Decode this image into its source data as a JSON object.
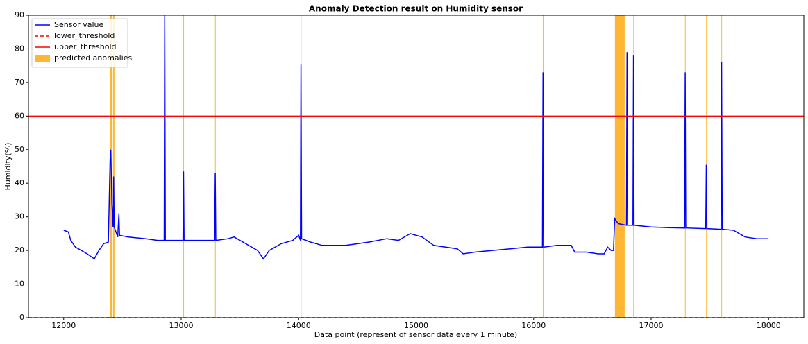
{
  "chart_data": {
    "type": "line",
    "title": "Anomaly Detection result on Humidity sensor",
    "xlabel": "Data point (represent of sensor data every 1 minute)",
    "ylabel": "Humidity(%)",
    "xlim": [
      11700,
      18300
    ],
    "ylim": [
      0,
      90
    ],
    "xticks": [
      12000,
      13000,
      14000,
      15000,
      16000,
      17000,
      18000
    ],
    "yticks": [
      0,
      10,
      20,
      30,
      40,
      50,
      60,
      70,
      80,
      90
    ],
    "legend": "upper left",
    "series": [
      {
        "name": "Sensor value",
        "color": "#0000ff",
        "x": [
          12000,
          12040,
          12060,
          12100,
          12150,
          12200,
          12260,
          12300,
          12340,
          12380,
          12395,
          12400,
          12410,
          12420,
          12425,
          12430,
          12460,
          12470,
          12475,
          12550,
          12700,
          12800,
          12855,
          12860,
          12865,
          13015,
          13020,
          13025,
          13285,
          13290,
          13295,
          13400,
          13450,
          13550,
          13650,
          13700,
          13750,
          13850,
          13950,
          14000,
          14015,
          14020,
          14025,
          14100,
          14200,
          14400,
          14600,
          14750,
          14850,
          14950,
          15050,
          15150,
          15250,
          15350,
          15400,
          15500,
          15650,
          15800,
          15950,
          16075,
          16080,
          16085,
          16200,
          16320,
          16350,
          16450,
          16550,
          16600,
          16630,
          16660,
          16680,
          16690,
          16720,
          16790,
          16795,
          16800,
          16845,
          16850,
          16855,
          17000,
          17150,
          17285,
          17290,
          17295,
          17465,
          17470,
          17475,
          17595,
          17600,
          17605,
          17700,
          17800,
          17900,
          18000
        ],
        "values": [
          26,
          25.5,
          23,
          21,
          20,
          19,
          17.5,
          20,
          22,
          22.5,
          47,
          50,
          34,
          27,
          42,
          27,
          24,
          31,
          24.5,
          24,
          23.5,
          23,
          23,
          90,
          23,
          23,
          43.5,
          23,
          23,
          43,
          23,
          23.5,
          24,
          22,
          20,
          17.5,
          20,
          22,
          23,
          24.5,
          23,
          75.5,
          23.5,
          22.5,
          21.5,
          21.5,
          22.5,
          23.5,
          23,
          25,
          24,
          21.5,
          21,
          20.5,
          19,
          19.5,
          20,
          20.5,
          21,
          21,
          73,
          21,
          21.5,
          21.5,
          19.5,
          19.5,
          19,
          19,
          21,
          20,
          20,
          29.5,
          28,
          27.5,
          79,
          27.5,
          27.5,
          78,
          27.5,
          27,
          26.8,
          26.7,
          73,
          26.7,
          26.5,
          45.5,
          26.5,
          26.3,
          76,
          26.3,
          26,
          24,
          23.5,
          23.5
        ]
      }
    ],
    "thresholds": [
      {
        "name": "lower_threshold",
        "value": 0,
        "color": "#ff0000",
        "dashed": true
      },
      {
        "name": "upper_threshold",
        "value": 60,
        "color": "#ff0000",
        "dashed": false
      }
    ],
    "anomalies": {
      "name": "predicted anomalies",
      "color": "#ffa500",
      "spans": [
        [
          12396,
          12412
        ],
        [
          12420,
          12432
        ],
        [
          12858,
          12862
        ],
        [
          13018,
          13022
        ],
        [
          13288,
          13292
        ],
        [
          14018,
          14022
        ],
        [
          16078,
          16082
        ],
        [
          16692,
          16775
        ],
        [
          16848,
          16852
        ],
        [
          17288,
          17292
        ],
        [
          17468,
          17472
        ],
        [
          17598,
          17602
        ]
      ]
    }
  }
}
